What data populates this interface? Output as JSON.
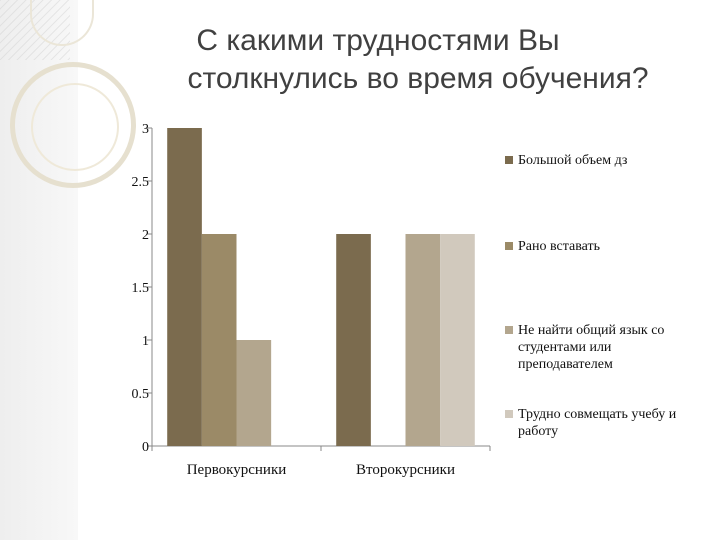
{
  "title_lines": [
    "С какими трудностями Вы",
    "столкнулись во время обучения?"
  ],
  "chart_data": {
    "type": "bar",
    "title": "С какими трудностями Вы столкнулись во время обучения?",
    "categories": [
      "Первокурсники",
      "Второкурсники"
    ],
    "series": [
      {
        "name": "Большой объем дз",
        "values": [
          3,
          2
        ],
        "color": "#7b6b4e"
      },
      {
        "name": "Рано вставать",
        "values": [
          2,
          0
        ],
        "color": "#9b8a67"
      },
      {
        "name": "Не найти общий язык со студентами или преподавателем",
        "values": [
          1,
          2
        ],
        "color": "#b3a68e"
      },
      {
        "name": "Трудно совмещать учебу и работу",
        "values": [
          0,
          2
        ],
        "color": "#d1c9bd"
      }
    ],
    "yticks": [
      "0",
      "0.5",
      "1",
      "1.5",
      "2",
      "2.5",
      "3"
    ],
    "ylim": [
      0,
      3
    ],
    "grid": false,
    "legend": "right"
  }
}
